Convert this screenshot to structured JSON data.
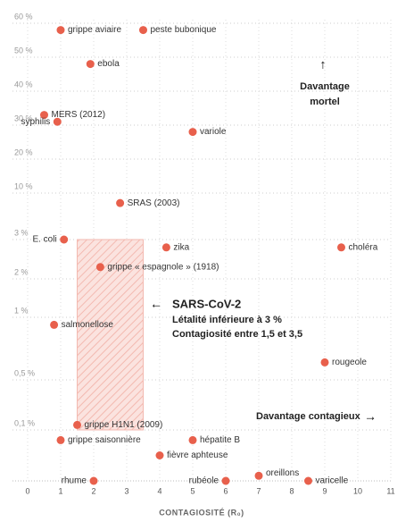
{
  "chart_data": {
    "type": "scatter",
    "x_label": "CONTAGIOSITÉ (R₀)",
    "x": [
      1,
      3.5,
      1.9,
      0.5,
      0.9,
      5,
      2.8,
      1.1,
      4.2,
      9.5,
      2.2,
      0.8,
      9,
      1.5,
      1,
      5,
      4,
      2,
      6,
      7,
      8.5
    ],
    "series": [
      {
        "color": "#e8604c",
        "values": [
          58,
          58,
          48,
          33,
          31,
          28,
          8.5,
          3,
          2.8,
          2.8,
          2.3,
          0.94,
          0.64,
          0.14,
          0.08,
          0.08,
          0.05,
          0,
          0,
          0.01,
          0
        ]
      }
    ],
    "point_labels": [
      "grippe aviaire",
      "peste bubonique",
      "ebola",
      "MERS (2012)",
      "syphilis",
      "variole",
      "SRAS (2003)",
      "E. coli",
      "zika",
      "choléra",
      "grippe « espagnole » (1918)",
      "salmonellose",
      "rougeole",
      "grippe H1N1 (2009)",
      "grippe saisonnière",
      "hépatite B",
      "fièvre aphteuse",
      "rhume",
      "rubéole",
      "oreillons",
      "varicelle"
    ],
    "xlim": [
      0,
      11
    ],
    "xticks": [
      0,
      1,
      2,
      3,
      4,
      5,
      6,
      7,
      8,
      9,
      10,
      11
    ],
    "ylim": [
      0,
      60
    ],
    "yticks": [
      {
        "value": 60,
        "label": "60 %"
      },
      {
        "value": 50,
        "label": "50 %"
      },
      {
        "value": 40,
        "label": "40 %"
      },
      {
        "value": 30,
        "label": "30 %"
      },
      {
        "value": 20,
        "label": "20 %"
      },
      {
        "value": 10,
        "label": "10 %"
      },
      {
        "value": 3,
        "label": "3 %"
      },
      {
        "value": 2,
        "label": "2 %"
      },
      {
        "value": 1,
        "label": "1 %"
      },
      {
        "value": 0.5,
        "label": "0,5 %"
      },
      {
        "value": 0.1,
        "label": "0,1 %"
      }
    ],
    "grid": true,
    "highlight": {
      "xlim": [
        1.5,
        3.5
      ],
      "ylim": [
        0.1,
        3
      ]
    },
    "annotations": {
      "virus": "SARS-CoV-2",
      "lethality": "Létalité inférieure à 3 %",
      "contagiousness": "Contagiosité entre 1,5 et 3,5",
      "mortal_1": "Davantage",
      "mortal_2": "mortel",
      "contagious": "Davantage contagieux"
    }
  }
}
